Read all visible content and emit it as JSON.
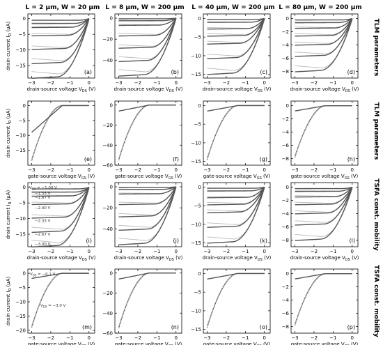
{
  "figure": {
    "column_titles": [
      "L = 2 µm, W = 20 µm",
      "L = 8 µm, W = 200 µm",
      "L = 40 µm, W = 200 µm",
      "L = 80 µm, W = 200 µm"
    ],
    "row_titles": [
      "TLM parameters",
      "TLM parameters",
      "TSFA const. mobility",
      "TSFA const. mobility"
    ],
    "ylabel_drain": "drain current I",
    "ylabel_sub": "D",
    "ylabel_unit": "(µA)",
    "xlabel_vds": "drain-source voltage V",
    "xlabel_vds_sub": "DS",
    "xlabel_vgs": "gate-source voltage V",
    "xlabel_vgs_sub": "GS",
    "xlabel_unit": "(V)",
    "vgs_legend": [
      "−1.00 V",
      "−1.33 V",
      "−1.67 V",
      "−2.00 V",
      "−2.33 V",
      "−2.67 V",
      "−3.00 V"
    ],
    "vgs_legend_prefix": "V",
    "vgs_legend_sub": "GS",
    "transfer_annotation_1": "V",
    "transfer_annotation_1_sub": "DS",
    "transfer_annotation_1_val": " = −0.1 V",
    "transfer_annotation_2": "V",
    "transfer_annotation_2_sub": "DS",
    "transfer_annotation_2_val": " = −3.0 V"
  },
  "colors": {
    "measured": "#555555",
    "model": "#bbbbbb",
    "axis": "#000000"
  },
  "chart_data": [
    {
      "label": "(a)",
      "type": "line",
      "kind": "output",
      "col": 0,
      "xlim": [
        -3.2,
        0.3
      ],
      "ylim": [
        -19,
        1.5
      ],
      "xticks": [
        -3,
        -2,
        -1,
        0
      ],
      "yticks": [
        0,
        -5,
        -10,
        -15
      ],
      "vgs": [
        -1.0,
        -1.33,
        -1.67,
        -2.0,
        -2.33,
        -2.67,
        -3.0
      ],
      "sat_current": [
        -0.5,
        -1.5,
        -2.7,
        -5.2,
        -9.3,
        -13.6,
        -18.0
      ]
    },
    {
      "label": "(b)",
      "type": "line",
      "kind": "output",
      "col": 1,
      "xlim": [
        -3.2,
        0.3
      ],
      "ylim": [
        -57,
        4
      ],
      "xticks": [
        -3,
        -2,
        -1,
        0
      ],
      "yticks": [
        0,
        -20,
        -40
      ],
      "vgs": [
        -1.0,
        -1.33,
        -1.67,
        -2.0,
        -2.33,
        -2.67,
        -3.0
      ],
      "sat_current": [
        -0.6,
        -2.4,
        -6.5,
        -16.0,
        -27.0,
        -39.0,
        -52.0
      ]
    },
    {
      "label": "(c)",
      "type": "line",
      "kind": "output",
      "col": 2,
      "xlim": [
        -3.2,
        0.3
      ],
      "ylim": [
        -16,
        1.2
      ],
      "xticks": [
        -3,
        -2,
        -1,
        0
      ],
      "yticks": [
        0,
        -5,
        -10,
        -15
      ],
      "vgs": [
        -1.0,
        -1.33,
        -1.67,
        -2.0,
        -2.33,
        -2.67,
        -3.0
      ],
      "sat_current": [
        -0.3,
        -1.0,
        -2.7,
        -4.5,
        -6.5,
        -10.2,
        -14.2
      ]
    },
    {
      "label": "(d)",
      "type": "line",
      "kind": "output",
      "col": 3,
      "xlim": [
        -3.2,
        0.3
      ],
      "ylim": [
        -9,
        0.7
      ],
      "xticks": [
        -3,
        -2,
        -1,
        0
      ],
      "yticks": [
        0,
        -2,
        -4,
        -6,
        -8
      ],
      "vgs": [
        -1.0,
        -1.33,
        -1.67,
        -2.0,
        -2.33,
        -2.67,
        -3.0
      ],
      "sat_current": [
        -0.2,
        -0.6,
        -1.4,
        -2.5,
        -3.8,
        -5.4,
        -7.6
      ]
    },
    {
      "label": "(e)",
      "type": "line",
      "kind": "transfer",
      "col": 0,
      "xlim": [
        -3.2,
        0.3
      ],
      "ylim": [
        -20,
        1.5
      ],
      "xticks": [
        -3,
        -2,
        -1,
        0
      ],
      "yticks": [
        0,
        -5,
        -10,
        -15
      ],
      "vth": -1.4,
      "imax": -18.5,
      "ilow_model": -9.0
    },
    {
      "label": "(f)",
      "type": "line",
      "kind": "transfer",
      "col": 1,
      "xlim": [
        -3.2,
        0.3
      ],
      "ylim": [
        -60,
        4
      ],
      "xticks": [
        -3,
        -2,
        -1,
        0
      ],
      "yticks": [
        0,
        -20,
        -40,
        -60
      ],
      "vth": -1.4,
      "imax": -55.0,
      "ilow_model": -6.0
    },
    {
      "label": "(g)",
      "type": "line",
      "kind": "transfer",
      "col": 2,
      "xlim": [
        -3.2,
        0.3
      ],
      "ylim": [
        -16,
        1.2
      ],
      "xticks": [
        -3,
        -2,
        -1,
        0
      ],
      "yticks": [
        0,
        -5,
        -10,
        -15
      ],
      "vth": -1.4,
      "imax": -14.5,
      "ilow_model": -1.5
    },
    {
      "label": "(h)",
      "type": "line",
      "kind": "transfer",
      "col": 3,
      "xlim": [
        -3.2,
        0.3
      ],
      "ylim": [
        -9,
        0.7
      ],
      "xticks": [
        -3,
        -2,
        -1,
        0
      ],
      "yticks": [
        0,
        -2,
        -4,
        -6,
        -8
      ],
      "vth": -1.4,
      "imax": -7.8,
      "ilow_model": -0.8
    },
    {
      "label": "(i)",
      "type": "line",
      "kind": "output",
      "col": 0,
      "legend": true,
      "xlim": [
        -3.2,
        0.3
      ],
      "ylim": [
        -19,
        1.5
      ],
      "xticks": [
        -3,
        -2,
        -1,
        0
      ],
      "yticks": [
        0,
        -5,
        -10,
        -15
      ],
      "vgs": [
        -1.0,
        -1.33,
        -1.67,
        -2.0,
        -2.33,
        -2.67,
        -3.0
      ],
      "sat_current": [
        -0.5,
        -1.5,
        -2.7,
        -5.2,
        -9.3,
        -13.6,
        -18.0
      ]
    },
    {
      "label": "(j)",
      "type": "line",
      "kind": "output",
      "col": 1,
      "xlim": [
        -3.2,
        0.3
      ],
      "ylim": [
        -57,
        4
      ],
      "xticks": [
        -3,
        -2,
        -1,
        0
      ],
      "yticks": [
        0,
        -20,
        -40
      ],
      "vgs": [
        -1.0,
        -1.33,
        -1.67,
        -2.0,
        -2.33,
        -2.67,
        -3.0
      ],
      "sat_current": [
        -0.6,
        -2.4,
        -6.5,
        -16.0,
        -27.0,
        -39.0,
        -52.0
      ]
    },
    {
      "label": "(k)",
      "type": "line",
      "kind": "output",
      "col": 2,
      "xlim": [
        -3.2,
        0.3
      ],
      "ylim": [
        -16,
        1.2
      ],
      "xticks": [
        -3,
        -2,
        -1,
        0
      ],
      "yticks": [
        0,
        -5,
        -10,
        -15
      ],
      "vgs": [
        -1.0,
        -1.33,
        -1.67,
        -2.0,
        -2.33,
        -2.67,
        -3.0
      ],
      "sat_current": [
        -0.3,
        -1.0,
        -2.7,
        -4.5,
        -6.5,
        -10.2,
        -14.2
      ]
    },
    {
      "label": "(l)",
      "type": "line",
      "kind": "output",
      "col": 3,
      "xlim": [
        -3.2,
        0.3
      ],
      "ylim": [
        -9,
        0.7
      ],
      "xticks": [
        -3,
        -2,
        -1,
        0
      ],
      "yticks": [
        0,
        -2,
        -4,
        -6,
        -8
      ],
      "vgs": [
        -1.0,
        -1.33,
        -1.67,
        -2.0,
        -2.33,
        -2.67,
        -3.0
      ],
      "sat_current": [
        -0.2,
        -0.6,
        -1.4,
        -2.5,
        -3.8,
        -5.4,
        -7.6
      ]
    },
    {
      "label": "(m)",
      "type": "line",
      "kind": "transfer",
      "col": 0,
      "annotate": true,
      "xlim": [
        -3.2,
        0.3
      ],
      "ylim": [
        -21,
        1.5
      ],
      "xticks": [
        -3,
        -2,
        -1,
        0
      ],
      "yticks": [
        0,
        -5,
        -10,
        -15,
        -20
      ],
      "vth": -1.4,
      "imax": -19.0,
      "ilow_model": -1.8
    },
    {
      "label": "(n)",
      "type": "line",
      "kind": "transfer",
      "col": 1,
      "xlim": [
        -3.2,
        0.3
      ],
      "ylim": [
        -60,
        4
      ],
      "xticks": [
        -3,
        -2,
        -1,
        0
      ],
      "yticks": [
        0,
        -20,
        -40,
        -60
      ],
      "vth": -1.4,
      "imax": -55.0,
      "ilow_model": -6.0
    },
    {
      "label": "(o)",
      "type": "line",
      "kind": "transfer",
      "col": 2,
      "xlim": [
        -3.2,
        0.3
      ],
      "ylim": [
        -16,
        1.2
      ],
      "xticks": [
        -3,
        -2,
        -1,
        0
      ],
      "yticks": [
        0,
        -5,
        -10,
        -15
      ],
      "vth": -1.4,
      "imax": -14.5,
      "ilow_model": -1.5
    },
    {
      "label": "(p)",
      "type": "line",
      "kind": "transfer",
      "col": 3,
      "xlim": [
        -3.2,
        0.3
      ],
      "ylim": [
        -9,
        0.7
      ],
      "xticks": [
        -3,
        -2,
        -1,
        0
      ],
      "yticks": [
        0,
        -2,
        -4,
        -6,
        -8
      ],
      "vth": -1.4,
      "imax": -7.8,
      "ilow_model": -0.8
    }
  ]
}
